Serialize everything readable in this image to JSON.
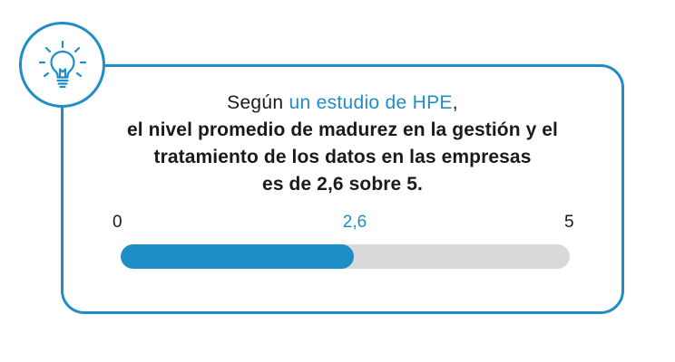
{
  "icon": "lightbulb-icon",
  "colors": {
    "accent": "#1f8dc7",
    "track": "#d9d9d9",
    "text": "#1a1a1a"
  },
  "message": {
    "intro_prefix": "Según ",
    "intro_link": "un estudio de HPE",
    "intro_suffix": ",",
    "line_2": "el nivel promedio de madurez en la gestión y el",
    "line_3": "tratamiento de los datos en las empresas",
    "line_4": "es de 2,6 sobre 5."
  },
  "scale": {
    "min_label": "0",
    "value_label": "2,6",
    "max_label": "5",
    "min": 0,
    "max": 5,
    "value": 2.6
  }
}
